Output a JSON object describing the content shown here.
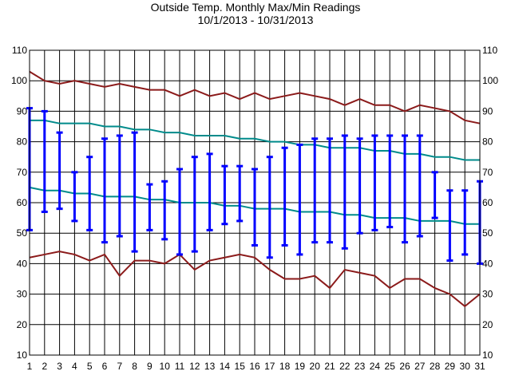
{
  "chart_data": {
    "type": "line",
    "title": "Outside Temp. Monthly Max/Min Readings",
    "subtitle": "10/1/2013 - 10/31/2013",
    "xlabel": "",
    "ylabel": "",
    "x": [
      1,
      2,
      3,
      4,
      5,
      6,
      7,
      8,
      9,
      10,
      11,
      12,
      13,
      14,
      15,
      16,
      17,
      18,
      19,
      20,
      21,
      22,
      23,
      24,
      25,
      26,
      27,
      28,
      29,
      30,
      31
    ],
    "xlim": [
      1,
      31
    ],
    "ylim": [
      10,
      110
    ],
    "y_ticks": [
      10,
      20,
      30,
      40,
      50,
      60,
      70,
      80,
      90,
      100,
      110
    ],
    "grid": true,
    "legend": "none",
    "colors": {
      "record_lines": "#8b1a1a",
      "normal_lines": "#008b8b",
      "daily_range": "#0000ff",
      "grid": "#000000"
    },
    "series": [
      {
        "type": "line",
        "color": "#8b1a1a",
        "values": [
          103,
          100,
          99,
          100,
          99,
          98,
          99,
          98,
          97,
          97,
          95,
          97,
          95,
          96,
          94,
          96,
          94,
          95,
          96,
          95,
          94,
          92,
          94,
          92,
          92,
          90,
          92,
          91,
          90,
          87,
          86
        ]
      },
      {
        "type": "line",
        "color": "#008b8b",
        "values": [
          87,
          87,
          86,
          86,
          86,
          85,
          85,
          84,
          84,
          83,
          83,
          82,
          82,
          82,
          81,
          81,
          80,
          80,
          79,
          79,
          78,
          78,
          78,
          77,
          77,
          76,
          76,
          75,
          75,
          74,
          74
        ]
      },
      {
        "type": "line",
        "color": "#008b8b",
        "values": [
          65,
          64,
          64,
          63,
          63,
          62,
          62,
          62,
          61,
          61,
          60,
          60,
          60,
          59,
          59,
          58,
          58,
          58,
          57,
          57,
          57,
          56,
          56,
          55,
          55,
          55,
          54,
          54,
          54,
          53,
          53
        ]
      },
      {
        "type": "line",
        "color": "#8b1a1a",
        "values": [
          42,
          43,
          44,
          43,
          41,
          43,
          36,
          41,
          41,
          40,
          43,
          38,
          41,
          42,
          43,
          42,
          38,
          35,
          35,
          36,
          32,
          38,
          37,
          36,
          32,
          35,
          35,
          32,
          30,
          26,
          30
        ]
      },
      {
        "type": "range",
        "color": "#0000ff",
        "high": [
          91,
          90,
          83,
          70,
          75,
          81,
          82,
          83,
          66,
          67,
          71,
          75,
          76,
          72,
          72,
          71,
          75,
          78,
          79,
          81,
          81,
          82,
          81,
          82,
          82,
          82,
          82,
          70,
          64,
          64,
          67
        ],
        "low": [
          51,
          57,
          58,
          54,
          51,
          47,
          49,
          44,
          51,
          48,
          43,
          44,
          51,
          53,
          54,
          46,
          42,
          46,
          43,
          47,
          47,
          45,
          50,
          51,
          52,
          47,
          49,
          55,
          41,
          43,
          40
        ]
      }
    ]
  }
}
